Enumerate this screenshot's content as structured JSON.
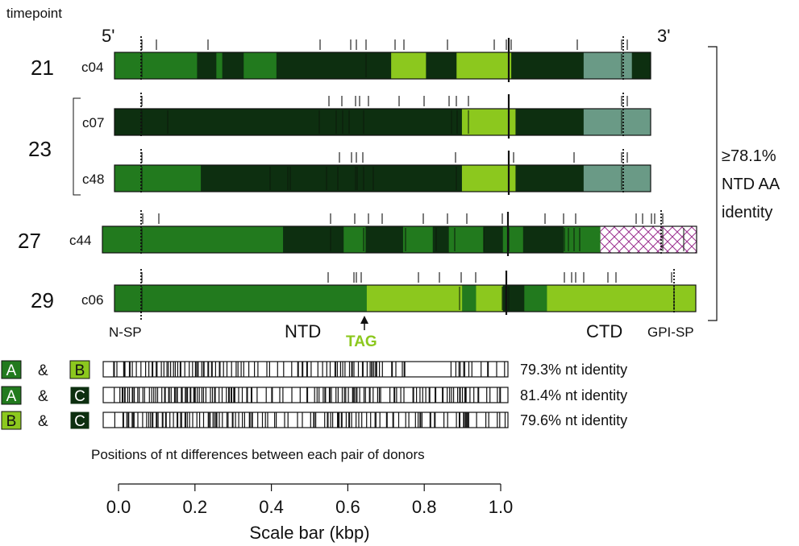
{
  "header": {
    "timepoint_label": "timepoint",
    "five_prime": "5'",
    "three_prime": "3'"
  },
  "colors": {
    "A": "#227a1e",
    "B": "#8cc81e",
    "C": "#0d2f10",
    "ctd_grey": "#6a9a86",
    "hatch": "#9b2f8f"
  },
  "rows": [
    {
      "timepoint": "21",
      "clone": "c04",
      "segments": [
        [
          "A",
          0,
          0.154
        ],
        [
          "C",
          0.154,
          0.19
        ],
        [
          "A",
          0.19,
          0.201
        ],
        [
          "C",
          0.201,
          0.241
        ],
        [
          "A",
          0.241,
          0.302
        ],
        [
          "C",
          0.302,
          0.516
        ],
        [
          "B",
          0.516,
          0.581
        ],
        [
          "C",
          0.581,
          0.638
        ],
        [
          "B",
          0.638,
          0.74
        ],
        [
          "C",
          0.74,
          0.875
        ],
        [
          "grey",
          0.875,
          0.965
        ],
        [
          "C",
          0.965,
          1.0
        ]
      ]
    },
    {
      "timepoint": "23",
      "clone": "c07",
      "segments": [
        [
          "C",
          0,
          0.648
        ],
        [
          "B",
          0.648,
          0.748
        ],
        [
          "C",
          0.748,
          0.875
        ],
        [
          "grey",
          0.875,
          1.0
        ]
      ]
    },
    {
      "timepoint": "",
      "clone": "c48",
      "segments": [
        [
          "A",
          0,
          0.161
        ],
        [
          "C",
          0.161,
          0.648
        ],
        [
          "B",
          0.648,
          0.748
        ],
        [
          "C",
          0.748,
          0.875
        ],
        [
          "grey",
          0.875,
          1.0
        ]
      ]
    },
    {
      "timepoint": "27",
      "clone": "c44",
      "segments": [
        [
          "A",
          0,
          0.304
        ],
        [
          "C",
          0.304,
          0.406
        ],
        [
          "A",
          0.406,
          0.443
        ],
        [
          "C",
          0.443,
          0.506
        ],
        [
          "A",
          0.506,
          0.556
        ],
        [
          "C",
          0.556,
          0.583
        ],
        [
          "A",
          0.583,
          0.641
        ],
        [
          "C",
          0.641,
          0.674
        ],
        [
          "A",
          0.674,
          0.708
        ],
        [
          "C",
          0.708,
          0.776
        ],
        [
          "A",
          0.776,
          0.838
        ],
        [
          "hatch",
          0.838,
          1.0
        ]
      ]
    },
    {
      "timepoint": "29",
      "clone": "c06",
      "segments": [
        [
          "A",
          0,
          0.434
        ],
        [
          "B",
          0.434,
          0.598
        ],
        [
          "A",
          0.598,
          0.622
        ],
        [
          "B",
          0.622,
          0.668
        ],
        [
          "C",
          0.668,
          0.705
        ],
        [
          "A",
          0.705,
          0.744
        ],
        [
          "B",
          0.744,
          1.0
        ]
      ]
    }
  ],
  "grouping": {
    "identity_label": "≥78.1% NTD AA identity"
  },
  "domains": {
    "nsp": "N-SP",
    "ntd": "NTD",
    "tag": "TAG",
    "ctd": "CTD",
    "gpisp": "GPI-SP"
  },
  "comparisons": [
    {
      "left": "A",
      "amp": "&",
      "right": "B",
      "identity": "79.3% nt identity"
    },
    {
      "left": "A",
      "amp": "&",
      "right": "C",
      "identity": "81.4% nt identity"
    },
    {
      "left": "B",
      "amp": "&",
      "right": "C",
      "identity": "79.6% nt identity"
    }
  ],
  "positions_caption": "Positions of nt differences between each pair of donors",
  "scale": {
    "ticks": [
      "0.0",
      "0.2",
      "0.4",
      "0.6",
      "0.8",
      "1.0"
    ],
    "label": "Scale bar (kbp)"
  }
}
